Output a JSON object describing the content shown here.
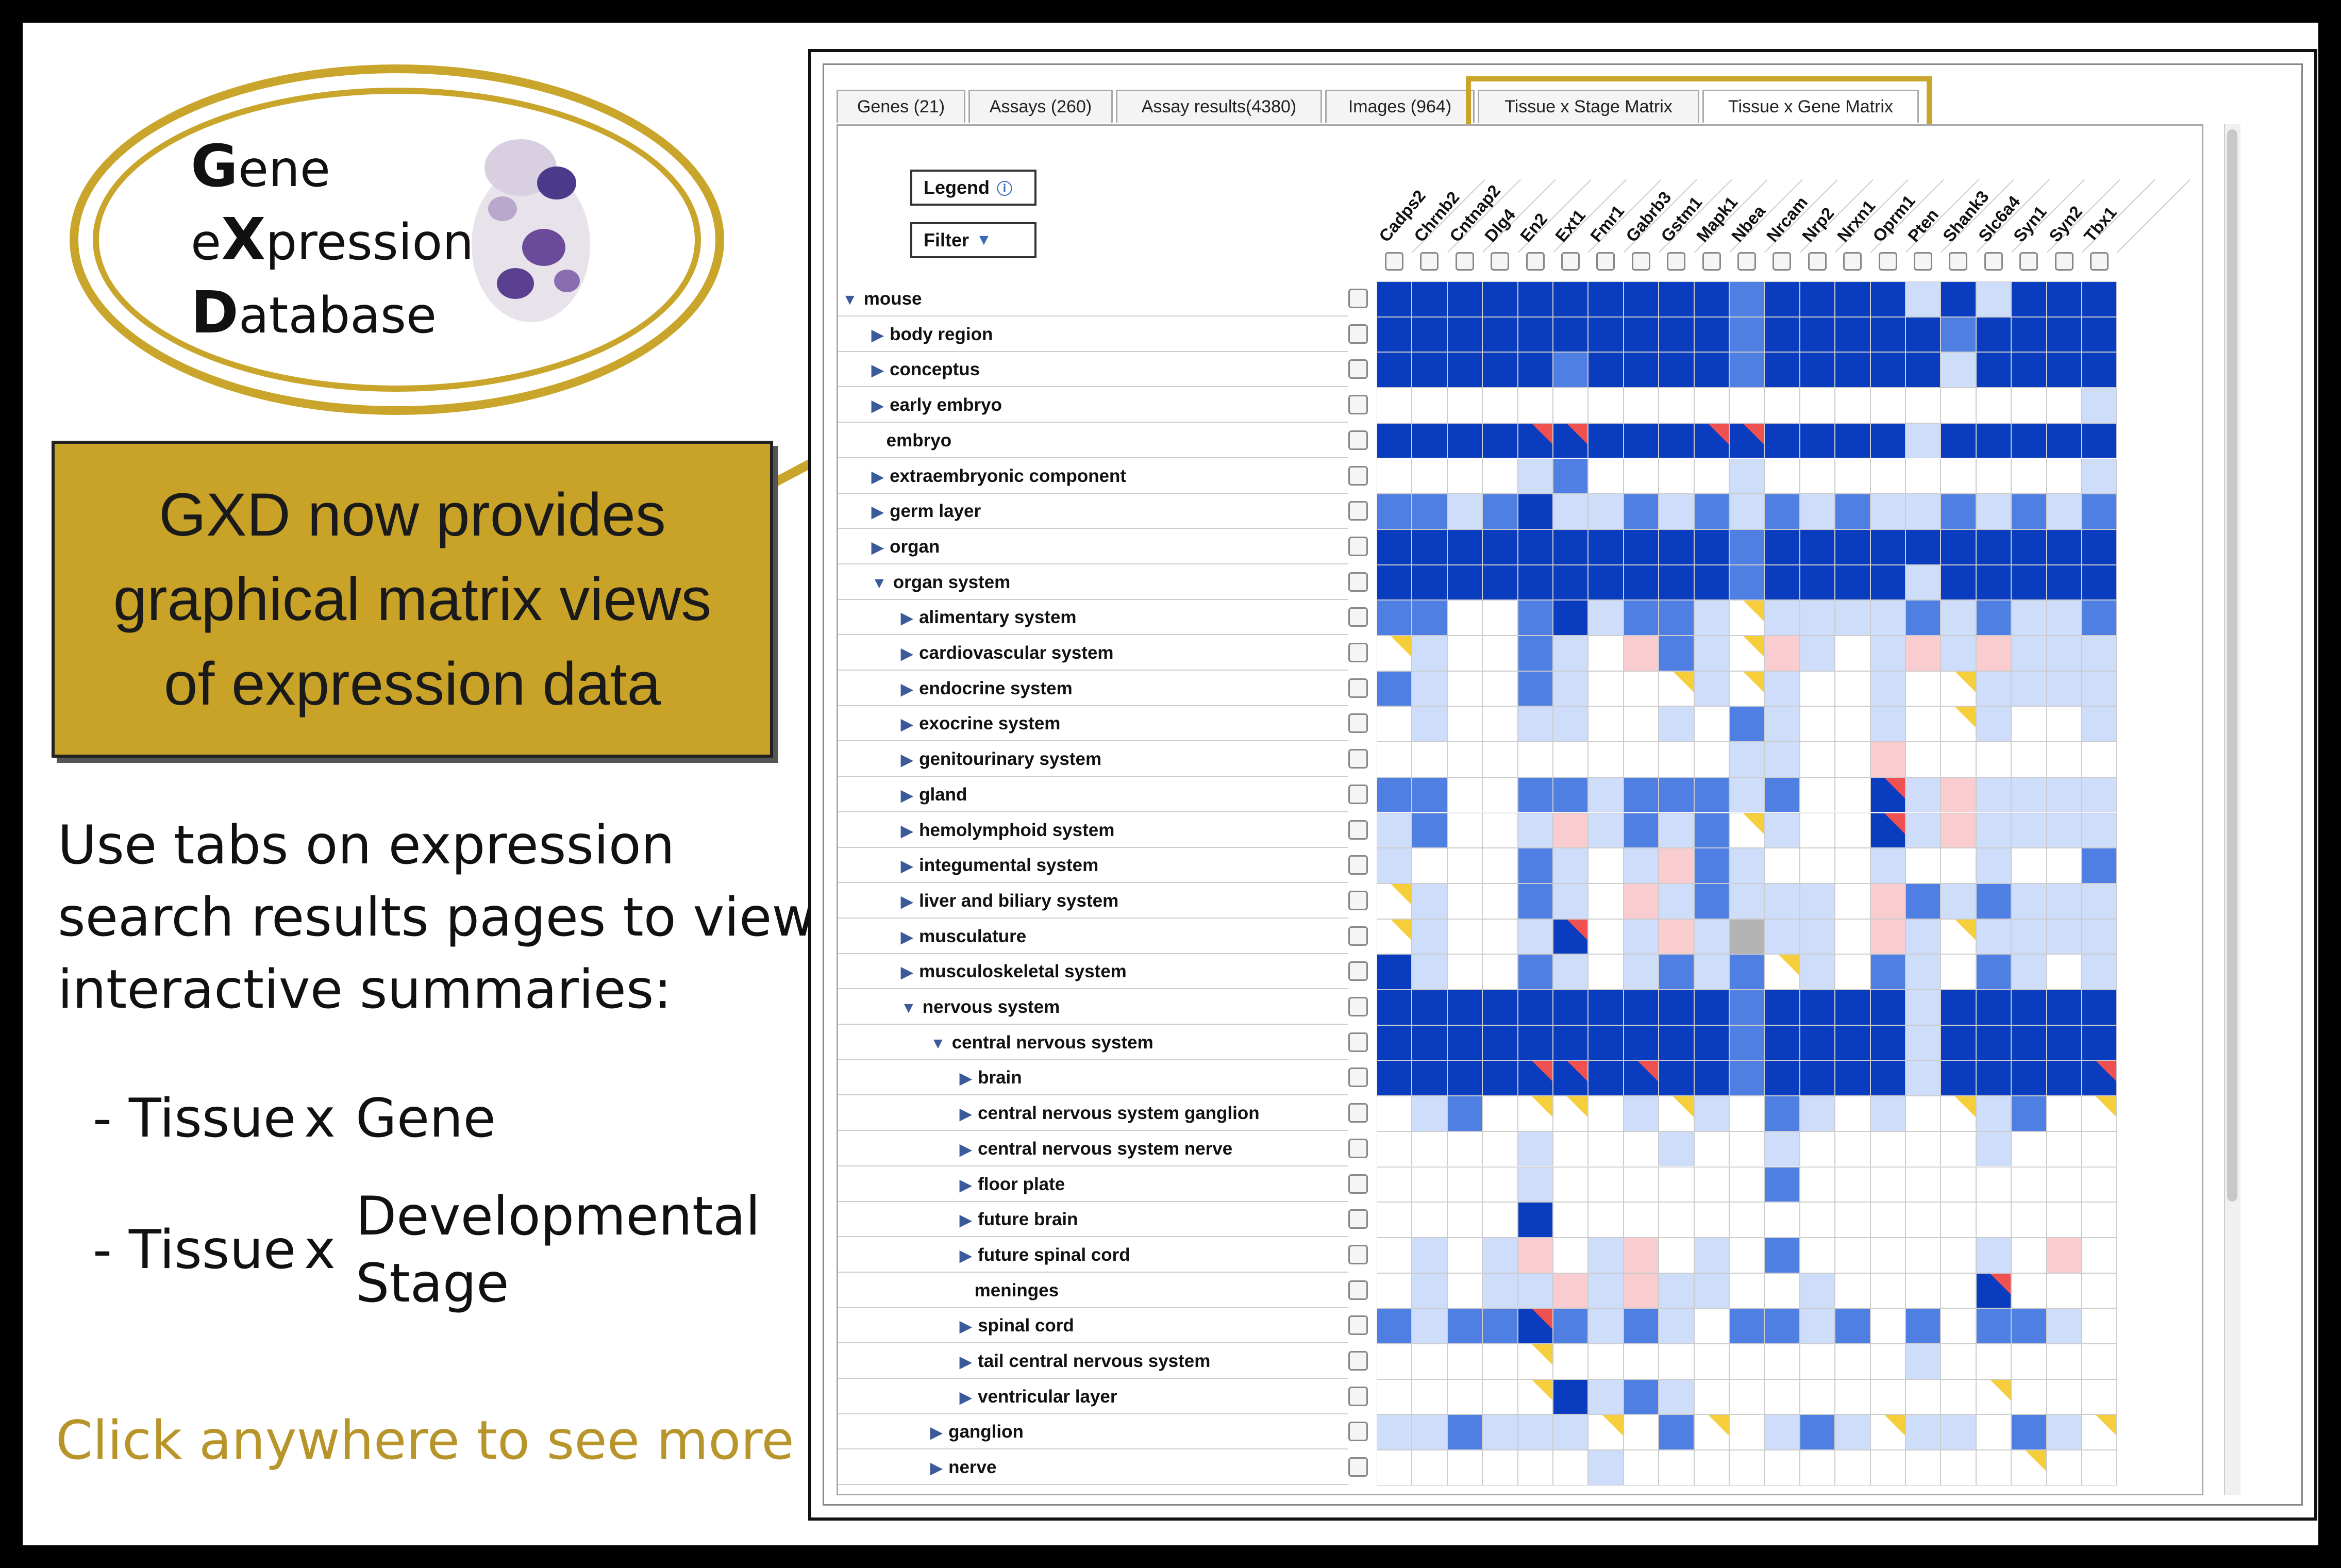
{
  "logo": {
    "line1_cap": "G",
    "line1_rest": "ene",
    "line2_pre": "e",
    "line2_cap": "X",
    "line2_rest": "pression",
    "line3_cap": "D",
    "line3_rest": "atabase"
  },
  "callout": {
    "line1": "GXD now provides",
    "line2": "graphical matrix views",
    "line3": "of expression data"
  },
  "info": {
    "line1": "Use tabs on expression",
    "line2": "search results pages to view",
    "line3": "interactive summaries:"
  },
  "bullets": {
    "b1_dash": "- Tissue",
    "b1_x": "x",
    "b1_word": "Gene",
    "b2_dash": "- Tissue",
    "b2_x": "x",
    "b2_word1": "Developmental",
    "b2_word2": "Stage"
  },
  "cta": "Click anywhere to see more",
  "tabs": [
    {
      "label": "Genes (21)"
    },
    {
      "label": "Assays (260)"
    },
    {
      "label": "Assay results(4380)"
    },
    {
      "label": "Images (964)"
    },
    {
      "label": "Tissue x Stage Matrix"
    },
    {
      "label": "Tissue x Gene Matrix"
    }
  ],
  "buttons": {
    "legend": "Legend",
    "filter": "Filter"
  },
  "genes": [
    "Cadps2",
    "Chrnb2",
    "Cntnap2",
    "Dlg4",
    "En2",
    "Ext1",
    "Fmr1",
    "Gabrb3",
    "Gstm1",
    "Mapk1",
    "Nbea",
    "Nrcam",
    "Nrp2",
    "Nrxn1",
    "Oprm1",
    "Pten",
    "Shank3",
    "Slc6a4",
    "Syn1",
    "Syn2",
    "Tbx1"
  ],
  "rows": [
    {
      "label": "mouse",
      "arrow": "▼",
      "level": 0
    },
    {
      "label": "body region",
      "arrow": "▶",
      "level": 1
    },
    {
      "label": "conceptus",
      "arrow": "▶",
      "level": 1
    },
    {
      "label": "early embryo",
      "arrow": "▶",
      "level": 1
    },
    {
      "label": "embryo",
      "arrow": "",
      "level": 1
    },
    {
      "label": "extraembryonic component",
      "arrow": "▶",
      "level": 1
    },
    {
      "label": "germ layer",
      "arrow": "▶",
      "level": 1
    },
    {
      "label": "organ",
      "arrow": "▶",
      "level": 1
    },
    {
      "label": "organ system",
      "arrow": "▼",
      "level": 1
    },
    {
      "label": "alimentary system",
      "arrow": "▶",
      "level": 2
    },
    {
      "label": "cardiovascular system",
      "arrow": "▶",
      "level": 2
    },
    {
      "label": "endocrine system",
      "arrow": "▶",
      "level": 2
    },
    {
      "label": "exocrine system",
      "arrow": "▶",
      "level": 2
    },
    {
      "label": "genitourinary system",
      "arrow": "▶",
      "level": 2
    },
    {
      "label": "gland",
      "arrow": "▶",
      "level": 2
    },
    {
      "label": "hemolymphoid system",
      "arrow": "▶",
      "level": 2
    },
    {
      "label": "integumental system",
      "arrow": "▶",
      "level": 2
    },
    {
      "label": "liver and biliary system",
      "arrow": "▶",
      "level": 2
    },
    {
      "label": "musculature",
      "arrow": "▶",
      "level": 2
    },
    {
      "label": "musculoskeletal system",
      "arrow": "▶",
      "level": 2
    },
    {
      "label": "nervous system",
      "arrow": "▼",
      "level": 2
    },
    {
      "label": "central nervous system",
      "arrow": "▼",
      "level": 3
    },
    {
      "label": "brain",
      "arrow": "▶",
      "level": 4
    },
    {
      "label": "central nervous system ganglion",
      "arrow": "▶",
      "level": 4
    },
    {
      "label": "central nervous system nerve",
      "arrow": "▶",
      "level": 4
    },
    {
      "label": "floor plate",
      "arrow": "▶",
      "level": 4
    },
    {
      "label": "future brain",
      "arrow": "▶",
      "level": 4
    },
    {
      "label": "future spinal cord",
      "arrow": "▶",
      "level": 4
    },
    {
      "label": "meninges",
      "arrow": "",
      "level": 4
    },
    {
      "label": "spinal cord",
      "arrow": "▶",
      "level": 4
    },
    {
      "label": "tail central nervous system",
      "arrow": "▶",
      "level": 4
    },
    {
      "label": "ventricular layer",
      "arrow": "▶",
      "level": 4
    },
    {
      "label": "ganglion",
      "arrow": "▶",
      "level": 3
    },
    {
      "label": "nerve",
      "arrow": "▶",
      "level": 3
    }
  ],
  "matrix_codes": [
    "DDDDDDDDDDMDDDDLDLDDD",
    "DDDDDDDDDDMDDDDDMDDDD",
    "DDDDDMDDDDMDDDDDLDDDD",
    "....................L",
    "DDDDRRDDDRRDDDDLDDDDD",
    "....LM....L.........L",
    "MMLMDLLMLMLMLMLLMLMLM",
    "DDDDDDDDDDMDDDDDDDDDD",
    "DDDDDDDDDDMDDDDLDDDDD",
    "MM..MDLMMLYLLLLMLMLLM",
    "YL..ML.PMLYPL.LPLPLLL",
    "ML..ML..YLYL..L.YLLLL",
    ".L..LL..L.ML..L.YL..L",
    "..........LL..P......",
    "MM..MMLMMMLM..RLPLLLL",
    "LM..LPLMLMYL..RLPLLLL",
    "L...ML.LPML...L..L..M",
    "YL..ML.PLMLLL.PMLMLLL",
    "YL..LR.LPLGLL.PLYLLLL",
    "DL..ML.LMLMYL.ML.ML.L",
    "DDDDDDDDDDMDDDDLDDDDD",
    "DDDDDDDDDDMDDDDLDDDDD",
    "DDDDRRDRDDMDDDDLDDDDR",
    ".LM.YY.LYL.ML.L.YLM.Y",
    "....L...L..L.....L...",
    "....L......M.........",
    "....D................",
    ".L.LP.LP.L.M.....L.P.",
    ".L.LLPLPLL..L....R...",
    "MLMMRMLML.MMLM.M.MML.",
    "....Y..........L.....",
    "....YDLML........Y...",
    "LLMLLLY.MY.LMLYLL.MLY",
    "......L...........Y.."
  ],
  "palette": {
    "D": "#0a3cc0",
    "M": "#4f7fe3",
    "L": "#cdddfa",
    "P": "#f9cccf",
    "G": "#b3b3b3",
    "Y": "#f6ce3c",
    "R": "#ef5050",
    "empty": "#ffffff",
    "accent_gold": "#c9a62b"
  }
}
